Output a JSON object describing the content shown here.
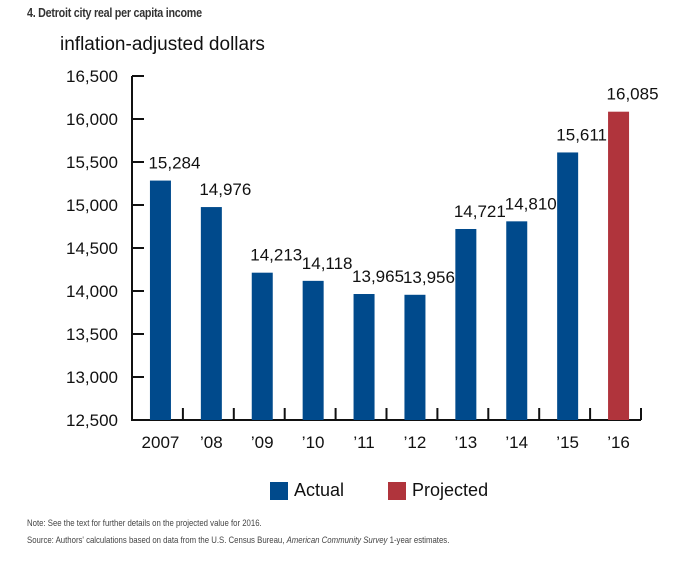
{
  "chart_data": {
    "type": "bar",
    "title": "4. Detroit city real per capita income",
    "ylabel": "inflation-adjusted dollars",
    "xlabel": "",
    "categories": [
      "2007",
      "'08",
      "'09",
      "'10",
      "'11",
      "'12",
      "'13",
      "'14",
      "'15",
      "'16"
    ],
    "values": [
      15284,
      14976,
      14213,
      14118,
      13965,
      13956,
      14721,
      14810,
      15611,
      16085
    ],
    "value_labels": [
      "15,284",
      "14,976",
      "14,213",
      "14,118",
      "13,965",
      "13,956",
      "14,721",
      "14,810",
      "15,611",
      "16,085"
    ],
    "series_type": [
      "Actual",
      "Actual",
      "Actual",
      "Actual",
      "Actual",
      "Actual",
      "Actual",
      "Actual",
      "Actual",
      "Projected"
    ],
    "ylim": [
      12500,
      16500
    ],
    "yticks": [
      12500,
      13000,
      13500,
      14000,
      14500,
      15000,
      15500,
      16000,
      16500
    ],
    "ytick_labels": [
      "12,500",
      "13,000",
      "13,500",
      "14,000",
      "14,500",
      "15,000",
      "15,500",
      "16,000",
      "16,500"
    ],
    "grid": false,
    "legend": {
      "placement": "bottom-center",
      "entries": [
        {
          "name": "Actual",
          "color": "#004a8c"
        },
        {
          "name": "Projected",
          "color": "#b0343c"
        }
      ]
    }
  },
  "notes": {
    "note": "Note: See the text for further details on the projected value for 2016.",
    "source_prefix": "Source: Authors' calculations based on data from the U.S. Census Bureau, ",
    "source_italic": "American Community Survey",
    "source_suffix": " 1-year estimates."
  },
  "colors": {
    "actual": "#004a8c",
    "projected": "#b0343c",
    "axis": "#111111"
  }
}
